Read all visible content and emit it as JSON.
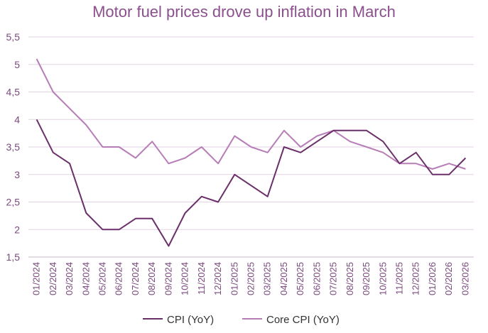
{
  "chart_data": {
    "type": "line",
    "title": "Motor fuel prices drove up inflation in March",
    "xlabel": "",
    "ylabel": "",
    "ylim": [
      1.5,
      5.5
    ],
    "yticks": [
      "1,5",
      "2",
      "2,5",
      "3",
      "3,5",
      "4",
      "4,5",
      "5",
      "5,5"
    ],
    "ytick_values": [
      1.5,
      2,
      2.5,
      3,
      3.5,
      4,
      4.5,
      5,
      5.5
    ],
    "grid": true,
    "legend_position": "bottom",
    "categories": [
      "01/2024",
      "02/2024",
      "03/2024",
      "04/2024",
      "05/2024",
      "06/2024",
      "07/2024",
      "08/2024",
      "09/2024",
      "10/2024",
      "11/2024",
      "12/2024",
      "01/2025",
      "02/2025",
      "03/2025",
      "04/2025",
      "05/2025",
      "06/2025",
      "07/2025",
      "08/2025",
      "09/2025",
      "10/2025",
      "11/2025",
      "12/2025",
      "01/2026",
      "02/2026",
      "03/2026"
    ],
    "series": [
      {
        "name": "CPI (YoY)",
        "color": "#6b2f6a",
        "values": [
          4.0,
          3.4,
          3.2,
          2.3,
          2.0,
          2.0,
          2.2,
          2.2,
          1.7,
          2.3,
          2.6,
          2.5,
          3.0,
          2.8,
          2.6,
          3.5,
          3.4,
          3.6,
          3.8,
          3.8,
          3.8,
          3.6,
          3.2,
          3.4,
          3.0,
          3.0,
          3.3
        ]
      },
      {
        "name": "Core CPI (YoY)",
        "color": "#b77db7",
        "values": [
          5.1,
          4.5,
          4.2,
          3.9,
          3.5,
          3.5,
          3.3,
          3.6,
          3.2,
          3.3,
          3.5,
          3.2,
          3.7,
          3.5,
          3.4,
          3.8,
          3.5,
          3.7,
          3.8,
          3.6,
          3.5,
          3.4,
          3.2,
          3.2,
          3.1,
          3.2,
          3.1
        ]
      }
    ]
  }
}
